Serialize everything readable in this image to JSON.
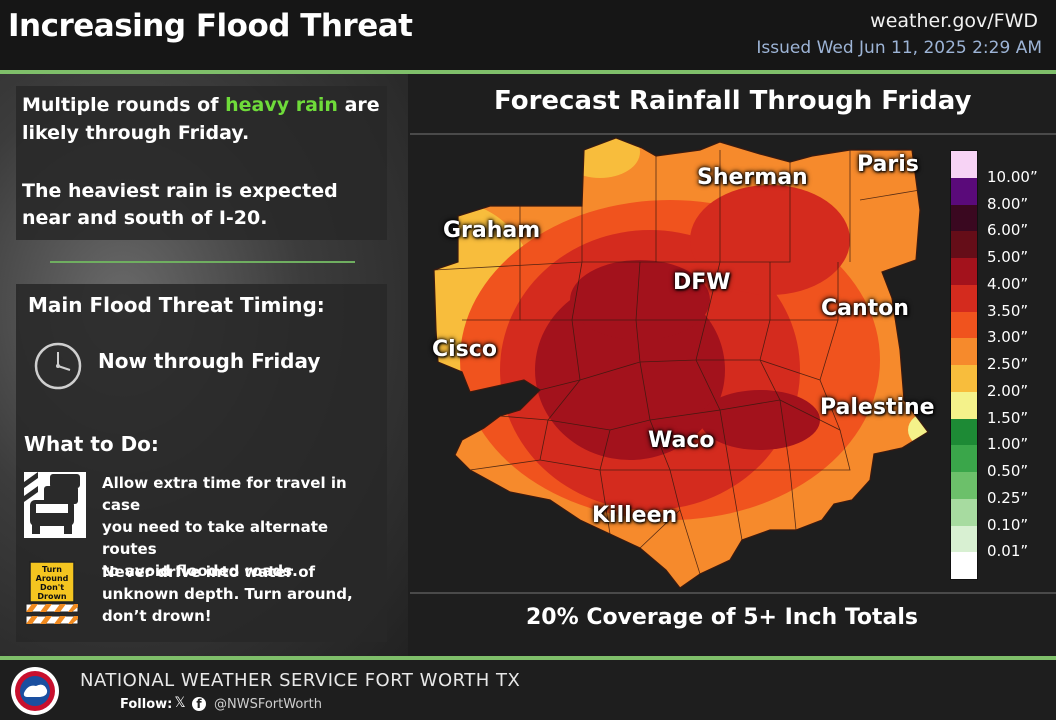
{
  "header": {
    "title": "Increasing Flood Threat",
    "url": "weather.gov/FWD",
    "issued": "Issued Wed Jun 11, 2025 2:29 AM"
  },
  "summary": {
    "line1_a": "Multiple rounds of ",
    "line1_highlight": "heavy rain",
    "line1_b": " are",
    "line2": "likely  through Friday.",
    "line3": "The heaviest rain is expected",
    "line4": "near and south of I-20."
  },
  "timing": {
    "heading": "Main Flood Threat Timing:",
    "text": "Now through Friday"
  },
  "todo": {
    "heading": "What to Do:",
    "item1": [
      "Allow extra time for travel in case",
      "you need to take alternate routes",
      "to avoid flooded roads."
    ],
    "item2": [
      "Never drive into water of",
      "unknown depth. Turn around,",
      "don’t drown!"
    ],
    "sign_text": [
      "Turn",
      "Around",
      "Don't",
      "Drown"
    ]
  },
  "map": {
    "title": "Forecast Rainfall Through Friday",
    "coverage": "20% Coverage of 5+ Inch Totals",
    "cities": [
      "Sherman",
      "Paris",
      "Graham",
      "DFW",
      "Canton",
      "Cisco",
      "Palestine",
      "Waco",
      "Killeen"
    ]
  },
  "legend": {
    "labels": [
      "10.00”",
      "8.00”",
      "6.00”",
      "5.00”",
      "4.00”",
      "3.50”",
      "3.00”",
      "2.50”",
      "2.00”",
      "1.50”",
      "1.00”",
      "0.50”",
      "0.25”",
      "0.10”",
      "0.01”"
    ],
    "colors": [
      "#f7d3f5",
      "#5a0a7a",
      "#3a0820",
      "#650d18",
      "#a3121c",
      "#d42b1e",
      "#f0531e",
      "#f68a2c",
      "#f8bd3c",
      "#f4f28a",
      "#1d8a35",
      "#3aa64a",
      "#6cc06a",
      "#a7dba0",
      "#d8f0d2",
      "#ffffff"
    ]
  },
  "footer": {
    "org": "NATIONAL WEATHER SERVICE FORT WORTH TX",
    "follow": "Follow:",
    "handle": "@NWSFortWorth",
    "x_glyph": "𝕏",
    "fb_glyph": "f"
  }
}
